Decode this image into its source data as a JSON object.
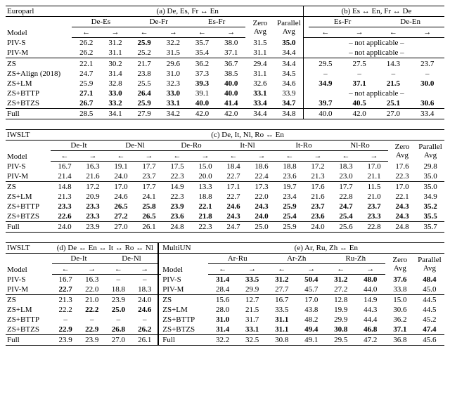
{
  "datasets": [
    "Europarl",
    "IWSLT",
    "MultiUN"
  ],
  "models": [
    "PIV-S",
    "PIV-M",
    "ZS",
    "ZS+Align (2018)",
    "ZS+LM",
    "ZS+BTTP",
    "ZS+BTZS",
    "Full"
  ],
  "arrows": {
    "left": "←",
    "right": "→",
    "both": "↔"
  },
  "na_text": "– not applicable –",
  "dash": "–",
  "panelA": {
    "title_a": "(a) De, Es, Fr ↔ En",
    "title_b": "(b) Es ↔ En, Fr ↔ De",
    "pairs_a": [
      "De-Es",
      "De-Fr",
      "Es-Fr"
    ],
    "agg_a": [
      "Zero Avg",
      "Parallel Avg"
    ],
    "pairs_b": [
      "Es-Fr",
      "De-En"
    ],
    "rows": [
      {
        "m": "PIV-S",
        "a": [
          "26.2",
          "31.2",
          "25.9b",
          "32.2",
          "35.7",
          "38.0",
          "31.5",
          "35.0b"
        ],
        "b": "na"
      },
      {
        "m": "PIV-M",
        "a": [
          "26.2",
          "31.1",
          "25.2",
          "31.5",
          "35.4",
          "37.1",
          "31.1",
          "34.4"
        ],
        "b": "na"
      },
      {
        "m": "ZS",
        "a": [
          "22.1",
          "30.2",
          "21.7",
          "29.6",
          "36.2",
          "36.7",
          "29.4",
          "34.4"
        ],
        "b": [
          "29.5",
          "27.5",
          "14.3",
          "23.7"
        ]
      },
      {
        "m": "ZS+Align (2018)",
        "a": [
          "24.7",
          "31.4",
          "23.8",
          "31.0",
          "37.3",
          "38.5",
          "31.1",
          "34.5"
        ],
        "b": [
          "–",
          "–",
          "–",
          "–"
        ]
      },
      {
        "m": "ZS+LM",
        "a": [
          "25.9",
          "32.8",
          "25.5",
          "32.3",
          "39.3b",
          "40.0b",
          "32.6",
          "34.6"
        ],
        "b": [
          "34.9b",
          "37.1b",
          "21.5b",
          "30.0b"
        ]
      },
      {
        "m": "ZS+BTTP",
        "a": [
          "27.1b",
          "33.0b",
          "26.4b",
          "33.0b",
          "39.1",
          "40.0b",
          "33.1b",
          "33.9"
        ],
        "b": "na"
      },
      {
        "m": "ZS+BTZS",
        "a": [
          "26.7b",
          "33.2b",
          "25.9b",
          "33.1b",
          "40.0b",
          "41.4b",
          "33.4b",
          "34.7b"
        ],
        "b": [
          "39.7b",
          "40.5b",
          "25.1b",
          "30.6b"
        ]
      },
      {
        "m": "Full",
        "a": [
          "28.5",
          "34.1",
          "27.9",
          "34.2",
          "42.0",
          "42.0",
          "34.4",
          "34.8"
        ],
        "b": [
          "40.0",
          "42.0",
          "27.0",
          "33.4"
        ]
      }
    ]
  },
  "panelC": {
    "title": "(c) De, It, Nl, Ro ↔ En",
    "pairs": [
      "De-It",
      "De-Nl",
      "De-Ro",
      "It-Nl",
      "It-Ro",
      "Nl-Ro"
    ],
    "agg": [
      "Zero Avg",
      "Parallel Avg"
    ],
    "rows": [
      {
        "m": "PIV-S",
        "v": [
          "16.7",
          "16.3",
          "19.1",
          "17.7",
          "17.5",
          "15.0",
          "18.4",
          "18.6",
          "18.8",
          "17.2",
          "18.3",
          "17.0",
          "17.6",
          "29.8"
        ]
      },
      {
        "m": "PIV-M",
        "v": [
          "21.4",
          "21.6",
          "24.0",
          "23.7",
          "22.3",
          "20.0",
          "22.7",
          "22.4",
          "23.6",
          "21.3",
          "23.0",
          "21.1",
          "22.3",
          "35.0"
        ]
      },
      {
        "m": "ZS",
        "v": [
          "14.8",
          "17.2",
          "17.0",
          "17.7",
          "14.9",
          "13.3",
          "17.1",
          "17.3",
          "19.7",
          "17.6",
          "17.7",
          "11.5",
          "17.0",
          "35.0"
        ]
      },
      {
        "m": "ZS+LM",
        "v": [
          "21.3",
          "20.9",
          "24.6",
          "24.1",
          "22.3",
          "18.8",
          "22.7",
          "22.0",
          "23.4",
          "21.6",
          "22.8",
          "21.0",
          "22.1",
          "34.9"
        ]
      },
      {
        "m": "ZS+BTTP",
        "v": [
          "23.3b",
          "23.3b",
          "26.5b",
          "25.8b",
          "23.9b",
          "22.1b",
          "24.6b",
          "24.3b",
          "25.9b",
          "23.7b",
          "24.7b",
          "23.7b",
          "24.3b",
          "35.2b"
        ]
      },
      {
        "m": "ZS+BTZS",
        "v": [
          "22.6b",
          "23.3b",
          "27.2b",
          "26.5b",
          "23.6b",
          "21.8b",
          "24.3b",
          "24.0b",
          "25.4b",
          "23.6b",
          "25.4b",
          "23.3b",
          "24.3b",
          "35.5b"
        ]
      },
      {
        "m": "Full",
        "v": [
          "24.0",
          "23.9",
          "27.0",
          "26.1",
          "24.8",
          "22.3",
          "24.7",
          "25.0",
          "25.9",
          "24.0",
          "25.6",
          "22.8",
          "24.8",
          "35.7"
        ]
      }
    ]
  },
  "panelDE": {
    "title_d": "(d) De ↔ En ↔ It ↔ Ro ↔ Nl",
    "title_e": "(e) Ar, Ru, Zh ↔ En",
    "pairs_d": [
      "De-It",
      "De-Nl"
    ],
    "pairs_e": [
      "Ar-Ru",
      "Ar-Zh",
      "Ru-Zh"
    ],
    "agg_e": [
      "Zero Avg",
      "Parallel Avg"
    ],
    "rows": [
      {
        "m": "PIV-S",
        "d": [
          "16.7",
          "16.3",
          "–",
          "–"
        ],
        "me": "PIV-S",
        "e": [
          "31.4b",
          "33.5b",
          "31.2b",
          "50.4b",
          "31.2b",
          "48.0b",
          "37.6b",
          "48.4b"
        ]
      },
      {
        "m": "PIV-M",
        "d": [
          "22.7b",
          "22.0",
          "18.8",
          "18.3"
        ],
        "me": "PIV-M",
        "e": [
          "28.4",
          "29.9",
          "27.7",
          "45.7",
          "27.2",
          "44.0",
          "33.8",
          "45.0"
        ]
      },
      {
        "m": "ZS",
        "d": [
          "21.3",
          "21.0",
          "23.9",
          "24.0"
        ],
        "me": "ZS",
        "e": [
          "15.6",
          "12.7",
          "16.7",
          "17.0",
          "12.8",
          "14.9",
          "15.0",
          "44.5"
        ]
      },
      {
        "m": "ZS+LM",
        "d": [
          "22.2",
          "22.2b",
          "25.0b",
          "24.6b"
        ],
        "me": "ZS+LM",
        "e": [
          "28.0",
          "21.5",
          "33.5",
          "43.8",
          "19.9",
          "44.3",
          "30.6",
          "44.5"
        ]
      },
      {
        "m": "ZS+BTTP",
        "d": [
          "–",
          "–",
          "–",
          "–"
        ],
        "me": "ZS+BTTP",
        "e": [
          "31.0b",
          "31.7",
          "31.1b",
          "48.2",
          "29.9",
          "44.4",
          "36.2",
          "45.2"
        ]
      },
      {
        "m": "ZS+BTZS",
        "d": [
          "22.9b",
          "22.9b",
          "26.8b",
          "26.2b"
        ],
        "me": "ZS+BTZS",
        "e": [
          "31.4b",
          "33.1b",
          "31.1b",
          "49.4b",
          "30.8b",
          "46.8b",
          "37.1b",
          "47.4b"
        ]
      },
      {
        "m": "Full",
        "d": [
          "23.9",
          "23.9",
          "27.0",
          "26.1"
        ],
        "me": "Full",
        "e": [
          "32.2",
          "32.5",
          "30.8",
          "49.1",
          "29.5",
          "47.2",
          "36.8",
          "45.6"
        ]
      }
    ]
  },
  "style": {
    "font_family": "Times New Roman",
    "font_size_pt": 11,
    "bg": "#ffffff",
    "text": "#000000",
    "rule_thin": 0.5,
    "rule_thick": 1.2
  }
}
